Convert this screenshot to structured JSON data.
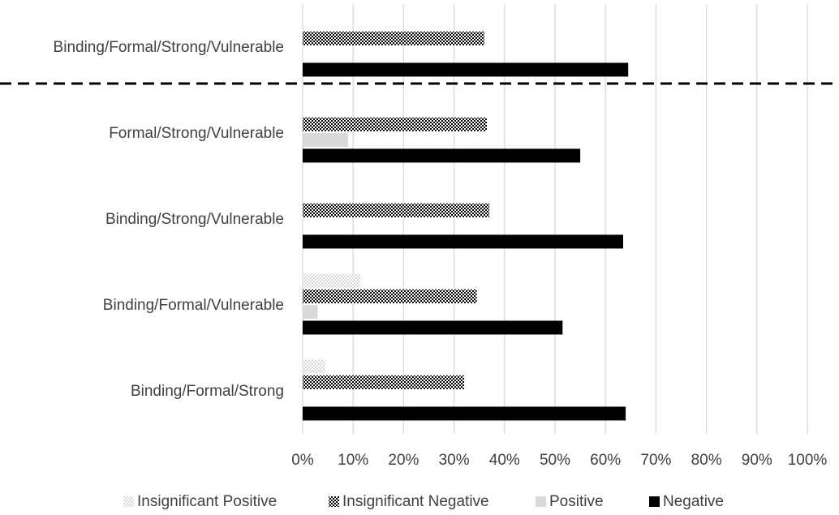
{
  "chart_data": {
    "type": "bar",
    "orientation": "horizontal",
    "categories": [
      "Binding/Formal/Strong/Vulnerable",
      "Formal/Strong/Vulnerable",
      "Binding/Strong/Vulnerable",
      "Binding/Formal/Vulnerable",
      "Binding/Formal/Strong"
    ],
    "series": [
      {
        "name": "Insignificant Positive",
        "values": [
          0,
          0,
          0,
          11.5,
          4.5
        ],
        "pattern": "checker-light",
        "color": "#d9d9d9"
      },
      {
        "name": "Insignificant Negative",
        "values": [
          36,
          36.5,
          37,
          34.5,
          32
        ],
        "pattern": "checker-dark",
        "color": "#000000"
      },
      {
        "name": "Positive",
        "values": [
          0,
          9,
          0,
          3,
          0
        ],
        "pattern": "solid",
        "color": "#d9d9d9"
      },
      {
        "name": "Negative",
        "values": [
          64.5,
          55,
          63.5,
          51.5,
          64
        ],
        "pattern": "solid",
        "color": "#000000"
      }
    ],
    "xlim": [
      0,
      100
    ],
    "x_ticks": [
      "0%",
      "10%",
      "20%",
      "30%",
      "40%",
      "50%",
      "60%",
      "70%",
      "80%",
      "90%",
      "100%"
    ],
    "grid": "vertical",
    "legend_position": "bottom",
    "separator": "dashed line between first and second category",
    "title": "",
    "xlabel": "",
    "ylabel": ""
  }
}
